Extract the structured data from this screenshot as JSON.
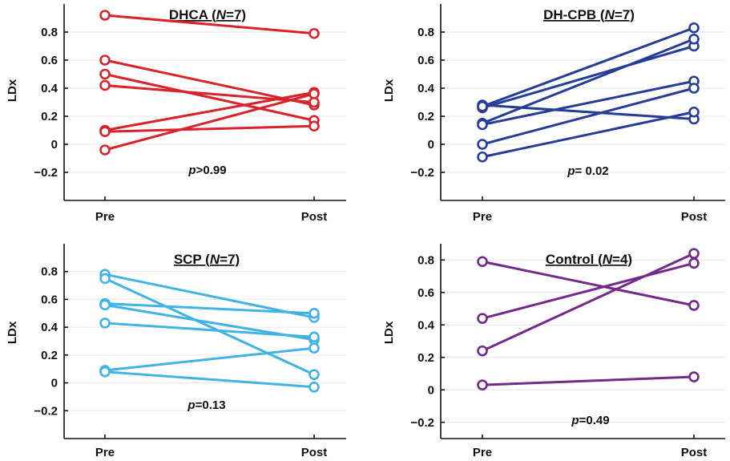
{
  "chart_data": [
    {
      "type": "line",
      "title": "DHCA (N=7)",
      "title_parts": [
        "DHCA (",
        "N",
        "=7)"
      ],
      "ylabel": "LDx",
      "categories": [
        "Pre",
        "Post"
      ],
      "ylim": [
        -0.4,
        1.0
      ],
      "yticks": [
        -0.2,
        0,
        0.2,
        0.4,
        0.6,
        0.8
      ],
      "ytick_labels": [
        "−0.2",
        "0",
        "0.2",
        "0.4",
        "0.6",
        "0.8"
      ],
      "color": "#d9222a",
      "grid": true,
      "annotation_parts": [
        "p",
        ">0.99"
      ],
      "series": [
        {
          "values": [
            0.92,
            0.79
          ]
        },
        {
          "values": [
            0.6,
            0.28
          ]
        },
        {
          "values": [
            0.5,
            0.17
          ]
        },
        {
          "values": [
            0.42,
            0.3
          ]
        },
        {
          "values": [
            0.1,
            0.37
          ]
        },
        {
          "values": [
            0.09,
            0.13
          ]
        },
        {
          "values": [
            -0.04,
            0.36
          ]
        }
      ]
    },
    {
      "type": "line",
      "title": "DH-CPB (N=7)",
      "title_parts": [
        "DH-CPB (",
        "N",
        "=7)"
      ],
      "ylabel": "LDx",
      "categories": [
        "Pre",
        "Post"
      ],
      "ylim": [
        -0.4,
        1.0
      ],
      "yticks": [
        -0.2,
        0,
        0.2,
        0.4,
        0.6,
        0.8
      ],
      "ytick_labels": [
        "−0.2",
        "0",
        "0.2",
        "0.4",
        "0.6",
        "0.8"
      ],
      "color": "#253d97",
      "grid": true,
      "annotation_parts": [
        "p",
        "= 0.02"
      ],
      "series": [
        {
          "values": [
            0.28,
            0.18
          ]
        },
        {
          "values": [
            0.26,
            0.7
          ]
        },
        {
          "values": [
            0.27,
            0.83
          ]
        },
        {
          "values": [
            0.15,
            0.75
          ]
        },
        {
          "values": [
            0.14,
            0.45
          ]
        },
        {
          "values": [
            0.0,
            0.4
          ]
        },
        {
          "values": [
            -0.09,
            0.23
          ]
        }
      ]
    },
    {
      "type": "line",
      "title": "SCP (N=7)",
      "title_parts": [
        "SCP (",
        "N",
        "=7)"
      ],
      "ylabel": "LDx",
      "categories": [
        "Pre",
        "Post"
      ],
      "ylim": [
        -0.4,
        1.0
      ],
      "yticks": [
        -0.2,
        0,
        0.2,
        0.4,
        0.6,
        0.8
      ],
      "ytick_labels": [
        "−0.2",
        "0",
        "0.2",
        "0.4",
        "0.6",
        "0.8"
      ],
      "color": "#42b3e5",
      "grid": true,
      "annotation_parts": [
        "p",
        "=0.13"
      ],
      "series": [
        {
          "values": [
            0.78,
            0.47
          ]
        },
        {
          "values": [
            0.75,
            0.06
          ]
        },
        {
          "values": [
            0.57,
            0.5
          ]
        },
        {
          "values": [
            0.56,
            0.31
          ]
        },
        {
          "values": [
            0.43,
            0.33
          ]
        },
        {
          "values": [
            0.09,
            0.25
          ]
        },
        {
          "values": [
            0.08,
            -0.03
          ]
        }
      ]
    },
    {
      "type": "line",
      "title": "Control (N=4)",
      "title_parts": [
        "Control (",
        "N",
        "=4)"
      ],
      "ylabel": "LDx",
      "categories": [
        "Pre",
        "Post"
      ],
      "ylim": [
        -0.3,
        0.9
      ],
      "yticks": [
        -0.2,
        0,
        0.2,
        0.4,
        0.6,
        0.8
      ],
      "ytick_labels": [
        "−0.2",
        "0",
        "0.2",
        "0.4",
        "0.6",
        "0.8"
      ],
      "color": "#722a8b",
      "grid": true,
      "annotation_parts": [
        "p",
        "=0.49"
      ],
      "series": [
        {
          "values": [
            0.79,
            0.52
          ]
        },
        {
          "values": [
            0.44,
            0.78
          ]
        },
        {
          "values": [
            0.24,
            0.84
          ]
        },
        {
          "values": [
            0.03,
            0.08
          ]
        }
      ]
    }
  ]
}
